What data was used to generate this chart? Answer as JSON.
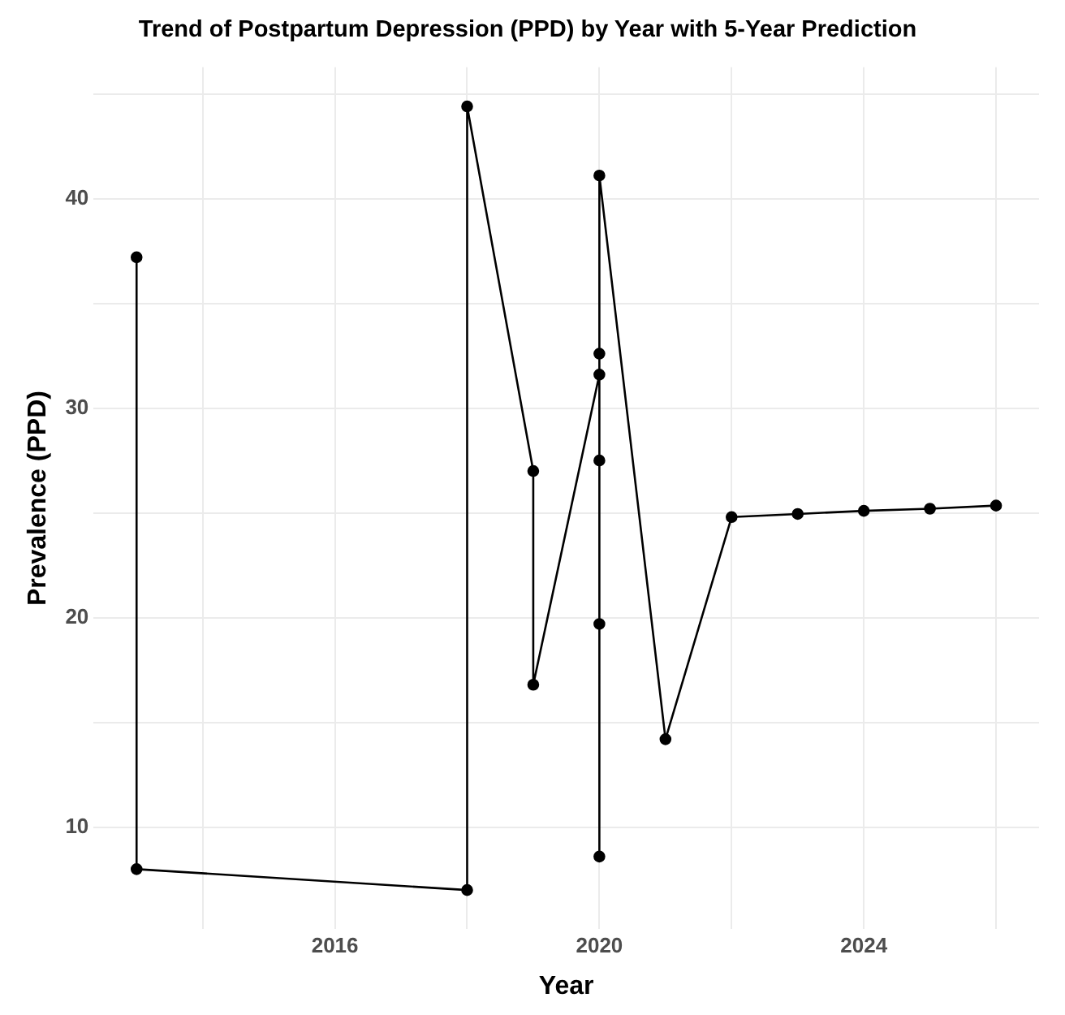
{
  "chart_data": {
    "type": "line",
    "title": "Trend of Postpartum Depression (PPD) by Year with 5-Year Prediction",
    "xlabel": "Year",
    "ylabel": "Prevalence (PPD)",
    "x": [
      2013,
      2013,
      2018,
      2018,
      2019,
      2019,
      2020,
      2020,
      2020,
      2020,
      2020,
      2020,
      2021,
      2022,
      2023,
      2024,
      2025,
      2026
    ],
    "values": [
      37.2,
      8.0,
      7.0,
      44.4,
      27.0,
      16.8,
      31.6,
      27.5,
      19.7,
      8.6,
      32.6,
      41.1,
      14.2,
      24.8,
      24.95,
      25.1,
      25.2,
      25.35
    ],
    "color": "#000000",
    "marker": "circle",
    "line_style": "solid",
    "grid": true,
    "xlim": [
      2012.35,
      2026.65
    ],
    "ylim": [
      5.13,
      46.27
    ],
    "xticks": [
      {
        "value": 2014,
        "label": null
      },
      2016,
      {
        "value": 2018,
        "label": null
      },
      2020,
      {
        "value": 2022,
        "label": null
      },
      2024,
      {
        "value": 2026,
        "label": null
      }
    ],
    "yticks": [
      10,
      {
        "value": 15,
        "label": null
      },
      20,
      {
        "value": 25,
        "label": null
      },
      30,
      {
        "value": 35,
        "label": null
      },
      40,
      {
        "value": 45,
        "label": null
      }
    ]
  }
}
